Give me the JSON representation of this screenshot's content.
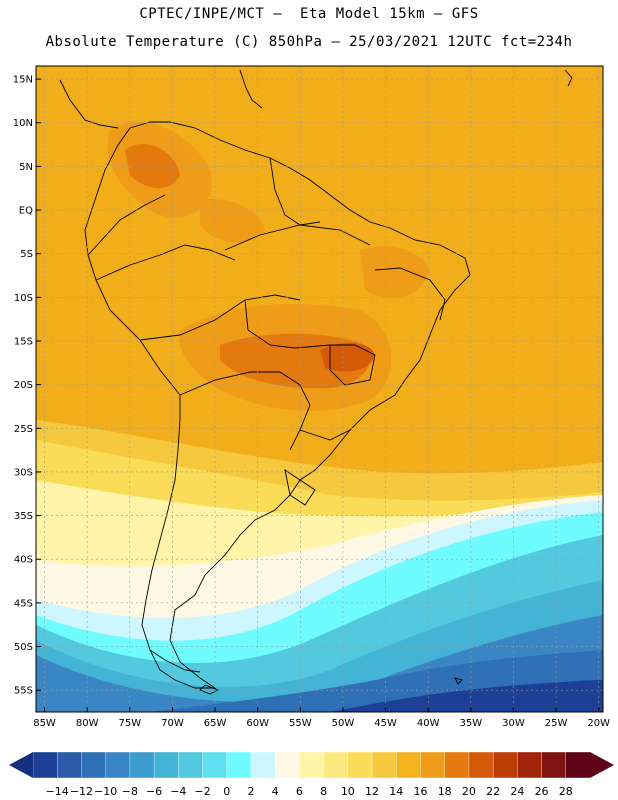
{
  "header": {
    "line1": "CPTEC/INPE/MCT —  Eta Model 15km — GFS",
    "line2": "Absolute Temperature (C) 850hPa — 25/03/2021 12UTC fct=234h"
  },
  "map": {
    "lat_labels": [
      "15N",
      "10N",
      "5N",
      "EQ",
      "5S",
      "10S",
      "15S",
      "20S",
      "25S",
      "30S",
      "35S",
      "40S",
      "45S",
      "50S",
      "55S"
    ],
    "lat_values": [
      15,
      10,
      5,
      0,
      -5,
      -10,
      -15,
      -20,
      -25,
      -30,
      -35,
      -40,
      -45,
      -50,
      -55
    ],
    "lon_labels": [
      "85W",
      "80W",
      "75W",
      "70W",
      "65W",
      "60W",
      "55W",
      "50W",
      "45W",
      "40W",
      "35W",
      "30W",
      "25W",
      "20W"
    ],
    "lon_values": [
      -85,
      -80,
      -75,
      -70,
      -65,
      -60,
      -55,
      -50,
      -45,
      -40,
      -35,
      -30,
      -25,
      -20
    ],
    "lon_range": [
      -86,
      -19.5
    ],
    "lat_range": [
      -57.5,
      16.5
    ]
  },
  "colorbar": {
    "labels": [
      "-14",
      "-12",
      "-10",
      "-8",
      "-6",
      "-4",
      "-2",
      "0",
      "2",
      "4",
      "6",
      "8",
      "10",
      "12",
      "14",
      "16",
      "18",
      "20",
      "22",
      "24",
      "26",
      "28"
    ],
    "colors": [
      "#1e3f96",
      "#2a5aa8",
      "#2f6fb6",
      "#3a86c4",
      "#3c9ccf",
      "#43b4d6",
      "#52c9de",
      "#5fdff0",
      "#6ffcff",
      "#cdf6ff",
      "#fff8e4",
      "#fff4a8",
      "#fce880",
      "#fadc58",
      "#f5c83e",
      "#f2b31c",
      "#ef9c18",
      "#e4790e",
      "#d45a08",
      "#bc3d06",
      "#a0240a",
      "#7e1410",
      "#5e0316"
    ],
    "left_arrow_color": "#16307f",
    "right_arrow_color": "#5e0316"
  },
  "colors": {
    "ocean_atlantic": "#efa81a",
    "land_base": "#f2b31c",
    "hot_core": "#e4790e",
    "south_ocean": "#3c9ccf"
  }
}
